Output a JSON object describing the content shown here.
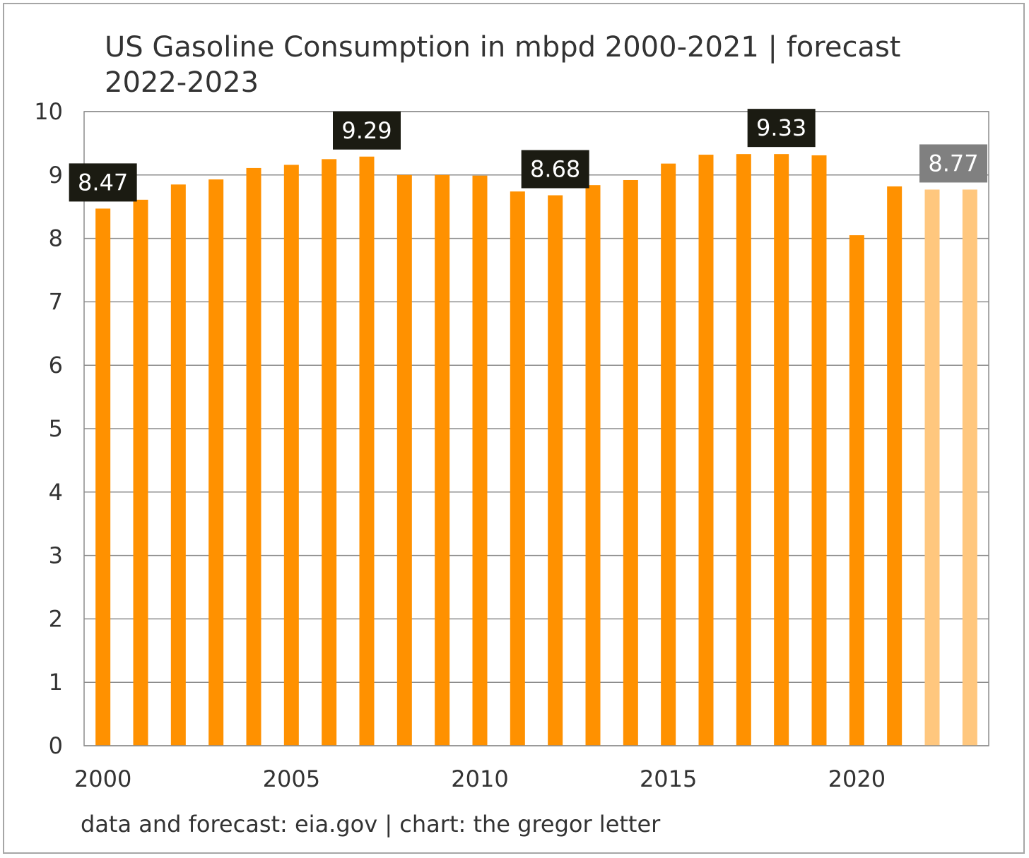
{
  "title": "US Gasoline Consumption in mbpd 2000-2021 | forecast 2022-2023",
  "source": "data and forecast: eia.gov | chart: the gregor letter",
  "colors": {
    "actual": "#ff9100",
    "forecast": "#ffc77e",
    "label_bg_dark": "#1b1b12",
    "label_bg_forecast": "#808080",
    "grid": "#8c8c8c"
  },
  "chart_data": {
    "type": "bar",
    "categories": [
      "2000",
      "2001",
      "2002",
      "2003",
      "2004",
      "2005",
      "2006",
      "2007",
      "2008",
      "2009",
      "2010",
      "2011",
      "2012",
      "2013",
      "2014",
      "2015",
      "2016",
      "2017",
      "2018",
      "2019",
      "2020",
      "2021",
      "2022",
      "2023"
    ],
    "series": [
      {
        "values": [
          8.47,
          8.61,
          8.85,
          8.93,
          9.11,
          9.16,
          9.25,
          9.29,
          9.0,
          9.0,
          8.99,
          8.74,
          8.68,
          8.84,
          8.92,
          9.18,
          9.32,
          9.33,
          9.33,
          9.31,
          8.05,
          8.82,
          8.77,
          8.77
        ]
      }
    ],
    "forecast_categories": [
      "2022",
      "2023"
    ],
    "x_tick_labels": [
      "2000",
      "2005",
      "2010",
      "2015",
      "2020"
    ],
    "y_tick_labels": [
      "0",
      "1",
      "2",
      "3",
      "4",
      "5",
      "6",
      "7",
      "8",
      "9",
      "10"
    ],
    "ylim": [
      0,
      10
    ],
    "grid": true,
    "xlabel": "",
    "ylabel": "",
    "data_labels": [
      {
        "category": "2000",
        "text": "8.47",
        "style": "dark"
      },
      {
        "category": "2007",
        "text": "9.29",
        "style": "dark"
      },
      {
        "category": "2012",
        "text": "8.68",
        "style": "dark"
      },
      {
        "category": "2018",
        "text": "9.33",
        "style": "dark"
      },
      {
        "category": "2023",
        "text": "8.77",
        "style": "forecast"
      }
    ]
  }
}
